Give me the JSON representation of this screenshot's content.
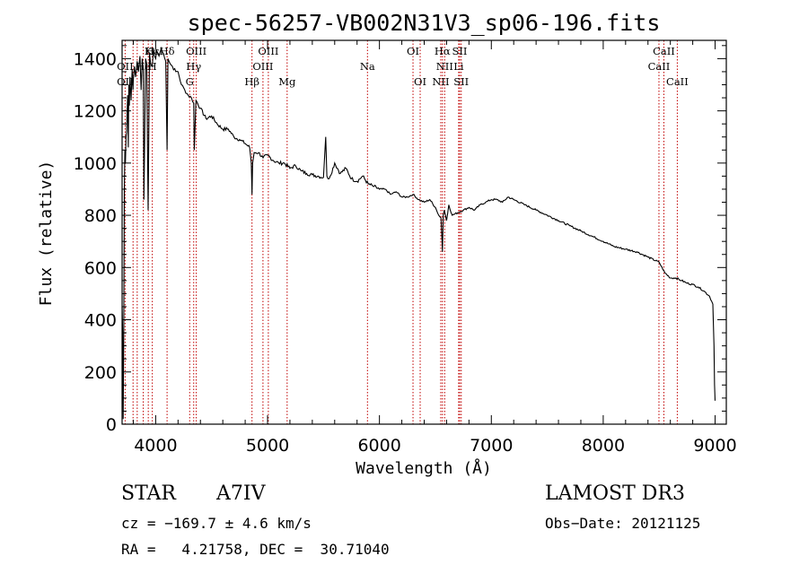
{
  "chart_data": {
    "type": "line",
    "title": "spec-56257-VB002N31V3_sp06-196.fits",
    "xlabel": "Wavelength (Å)",
    "ylabel": "Flux (relative)",
    "xlim": [
      3700,
      9100
    ],
    "ylim": [
      0,
      1470
    ],
    "x_ticks": [
      4000,
      5000,
      6000,
      7000,
      8000,
      9000
    ],
    "y_ticks": [
      0,
      200,
      400,
      600,
      800,
      1000,
      1200,
      1400
    ],
    "series": [
      {
        "name": "flux",
        "x": [
          3700,
          3705,
          3710,
          3715,
          3720,
          3725,
          3730,
          3735,
          3740,
          3745,
          3750,
          3755,
          3760,
          3765,
          3770,
          3780,
          3790,
          3797,
          3800,
          3810,
          3820,
          3835,
          3845,
          3860,
          3870,
          3880,
          3889,
          3895,
          3910,
          3920,
          3933,
          3945,
          3955,
          3970,
          3980,
          3990,
          4000,
          4010,
          4030,
          4050,
          4070,
          4090,
          4102,
          4110,
          4130,
          4150,
          4180,
          4200,
          4230,
          4260,
          4290,
          4320,
          4340,
          4345,
          4360,
          4400,
          4450,
          4500,
          4550,
          4600,
          4650,
          4700,
          4750,
          4800,
          4840,
          4855,
          4861,
          4867,
          4880,
          4920,
          4960,
          5000,
          5050,
          5100,
          5150,
          5200,
          5250,
          5300,
          5350,
          5400,
          5450,
          5500,
          5520,
          5530,
          5540,
          5560,
          5600,
          5650,
          5700,
          5750,
          5800,
          5850,
          5900,
          5950,
          6000,
          6050,
          6100,
          6150,
          6200,
          6250,
          6300,
          6350,
          6400,
          6450,
          6500,
          6530,
          6550,
          6560,
          6563,
          6570,
          6580,
          6600,
          6620,
          6650,
          6700,
          6750,
          6800,
          6850,
          6900,
          6950,
          7000,
          7050,
          7100,
          7150,
          7200,
          7300,
          7400,
          7500,
          7600,
          7700,
          7800,
          7900,
          8000,
          8100,
          8200,
          8300,
          8400,
          8500,
          8550,
          8600,
          8650,
          8700,
          8750,
          8800,
          8850,
          8900,
          8950,
          8980,
          8990,
          8995,
          9000
        ],
        "y": [
          450,
          360,
          20,
          380,
          900,
          1050,
          1000,
          1100,
          1120,
          1200,
          1260,
          1060,
          1300,
          1220,
          1330,
          1240,
          1360,
          1280,
          1320,
          1370,
          1330,
          1390,
          1350,
          1410,
          1280,
          1400,
          1360,
          860,
          1400,
          1380,
          820,
          1420,
          1380,
          1370,
          1440,
          1410,
          1400,
          1430,
          1410,
          1440,
          1420,
          1390,
          1050,
          1400,
          1380,
          1370,
          1350,
          1350,
          1300,
          1280,
          1260,
          1250,
          1230,
          1050,
          1240,
          1210,
          1170,
          1180,
          1150,
          1130,
          1130,
          1100,
          1090,
          1075,
          1060,
          1000,
          880,
          1000,
          1040,
          1040,
          1020,
          1030,
          1010,
          1000,
          1000,
          980,
          990,
          970,
          960,
          955,
          950,
          945,
          1100,
          950,
          940,
          950,
          1000,
          960,
          980,
          940,
          930,
          950,
          920,
          910,
          900,
          900,
          880,
          890,
          870,
          870,
          880,
          860,
          850,
          860,
          830,
          800,
          790,
          700,
          660,
          800,
          820,
          780,
          840,
          800,
          810,
          820,
          830,
          820,
          840,
          850,
          860,
          860,
          850,
          870,
          860,
          840,
          820,
          800,
          780,
          760,
          740,
          720,
          700,
          680,
          670,
          660,
          640,
          620,
          580,
          560,
          560,
          550,
          540,
          535,
          525,
          510,
          490,
          460,
          300,
          150,
          90
        ]
      }
    ],
    "line_marks": [
      {
        "label": "Hε",
        "wl": 3970,
        "row": 0
      },
      {
        "label": "K",
        "wl": 3934,
        "row": 0
      },
      {
        "label": "Hδ",
        "wl": 4102,
        "row": 0
      },
      {
        "label": "OIII",
        "wl": 4363,
        "row": 0
      },
      {
        "label": "OIII",
        "wl": 5007,
        "row": 0
      },
      {
        "label": "OI",
        "wl": 6300,
        "row": 0
      },
      {
        "label": "Hα",
        "wl": 6563,
        "row": 0
      },
      {
        "label": "SII",
        "wl": 6717,
        "row": 0
      },
      {
        "label": "CaII",
        "wl": 8542,
        "row": 0
      },
      {
        "label": "OII",
        "wl": 3727,
        "row": 1
      },
      {
        "label": "He",
        "wl": 3889,
        "row": 1
      },
      {
        "label": "H",
        "wl": 3970,
        "row": 1
      },
      {
        "label": "Hγ",
        "wl": 4340,
        "row": 1
      },
      {
        "label": "OIII",
        "wl": 4959,
        "row": 1
      },
      {
        "label": "Na",
        "wl": 5893,
        "row": 1
      },
      {
        "label": "NII",
        "wl": 6583,
        "row": 1
      },
      {
        "label": "Li",
        "wl": 6708,
        "row": 1
      },
      {
        "label": "CaII",
        "wl": 8498,
        "row": 1
      },
      {
        "label": "OII",
        "wl": 3727,
        "row": 2
      },
      {
        "label": "G",
        "wl": 4304,
        "row": 2
      },
      {
        "label": "Hβ",
        "wl": 4861,
        "row": 2
      },
      {
        "label": "Mg",
        "wl": 5175,
        "row": 2
      },
      {
        "label": "OI",
        "wl": 6364,
        "row": 2
      },
      {
        "label": "NII",
        "wl": 6548,
        "row": 2
      },
      {
        "label": "SII",
        "wl": 6731,
        "row": 2
      },
      {
        "label": "CaII",
        "wl": 8662,
        "row": 2
      }
    ],
    "line_mark_positions": [
      3727,
      3798,
      3835,
      3889,
      3934,
      3970,
      4102,
      4304,
      4340,
      4363,
      4861,
      4959,
      5007,
      5175,
      5893,
      6300,
      6364,
      6548,
      6563,
      6583,
      6708,
      6717,
      6731,
      8498,
      8542,
      8662
    ],
    "line_mark_color": "#c00000"
  },
  "info": {
    "object_class": "STAR",
    "subclass": "A7IV",
    "survey": "LAMOST DR3",
    "cz": "cz = −169.7 ± 4.6 km/s",
    "obs_date": "Obs−Date: 20121125",
    "coords": "RA =   4.21758, DEC =  30.71040"
  }
}
